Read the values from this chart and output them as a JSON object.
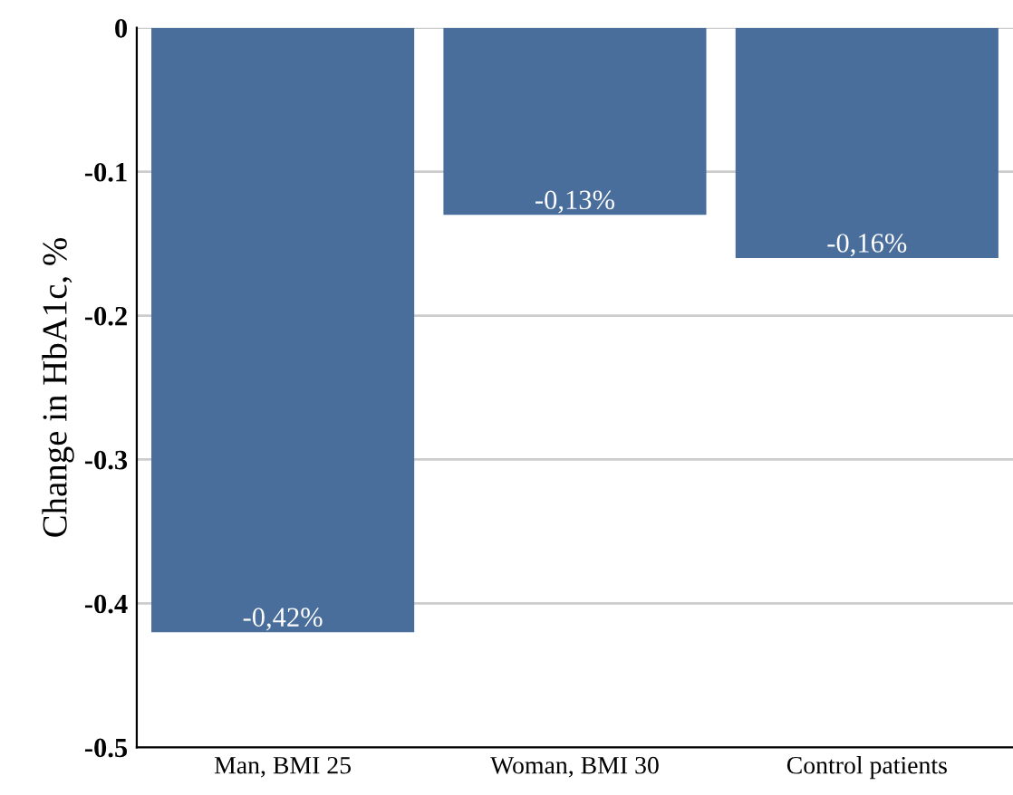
{
  "chart_data": {
    "type": "bar",
    "ylabel": "Change in HbA1c, %",
    "categories": [
      "Man, BMI 25",
      "Woman, BMI 30",
      "Control patients"
    ],
    "values": [
      -0.42,
      -0.13,
      -0.16
    ],
    "value_labels": [
      "-0,42%",
      "-0,13%",
      "-0,16%"
    ],
    "color": "#4a6e9b",
    "ylim": [
      -0.5,
      0
    ],
    "yticks": [
      0,
      -0.1,
      -0.2,
      -0.3,
      -0.4,
      -0.5
    ],
    "grid": "y"
  }
}
